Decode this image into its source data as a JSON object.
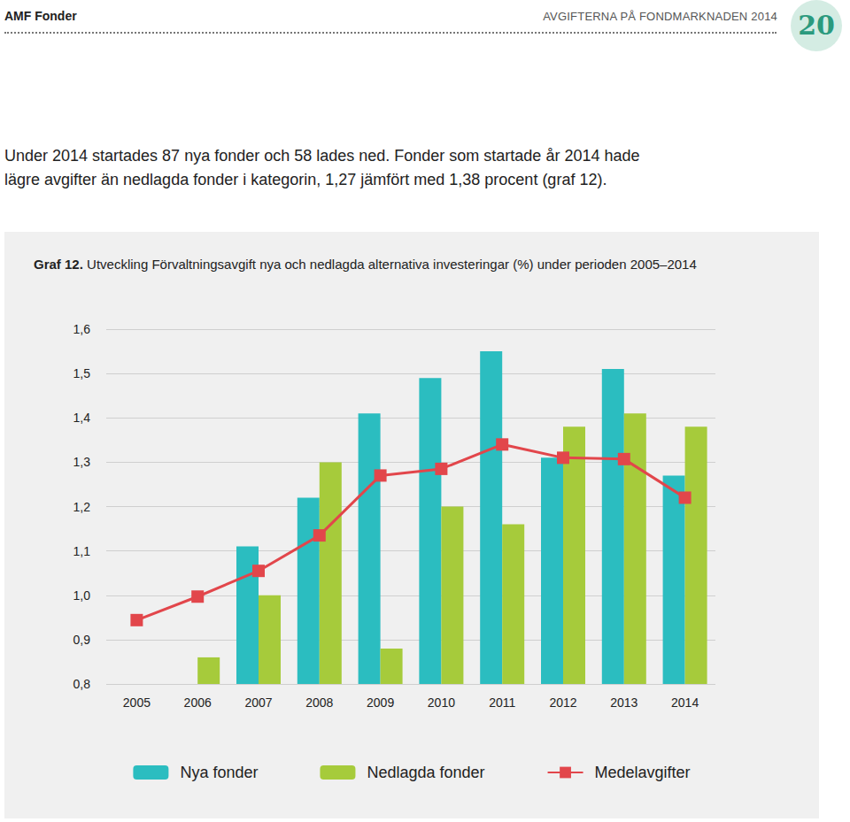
{
  "page": {
    "header_left": "AMF Fonder",
    "header_right": "AVGIFTERNA PÅ FONDMARKNADEN 2014",
    "page_number": "20",
    "paragraph": "Under 2014 startades 87 nya fonder och 58 lades ned. Fonder som startade år 2014 hade lägre avgifter än nedlagda fonder i kategorin, 1,27 jämfört med 1,38 procent (graf 12)."
  },
  "chart_data": {
    "type": "bar",
    "title_label": "Graf 12.",
    "title": "Utveckling Förvaltningsavgift nya och nedlagda alternativa investeringar (%) under perioden 2005–2014",
    "categories": [
      "2005",
      "2006",
      "2007",
      "2008",
      "2009",
      "2010",
      "2011",
      "2012",
      "2013",
      "2014"
    ],
    "series": [
      {
        "name": "Nya fonder",
        "type": "bar",
        "color": "#2bbdc0",
        "values": [
          null,
          null,
          1.11,
          1.22,
          1.41,
          1.49,
          1.55,
          1.31,
          1.51,
          1.27
        ]
      },
      {
        "name": "Nedlagda fonder",
        "type": "bar",
        "color": "#a6cb3b",
        "values": [
          null,
          0.86,
          1.0,
          1.3,
          0.88,
          1.2,
          1.16,
          1.38,
          1.41,
          1.38
        ]
      },
      {
        "name": "Medelavgifter",
        "type": "line",
        "color": "#e2464b",
        "marker": "square",
        "values": [
          0.944,
          0.997,
          1.055,
          1.135,
          1.27,
          1.285,
          1.34,
          1.31,
          1.307,
          1.22
        ]
      }
    ],
    "ylim": [
      0.8,
      1.6
    ],
    "yticks": [
      {
        "value": 0.8,
        "label": "0,8"
      },
      {
        "value": 0.9,
        "label": "0,9"
      },
      {
        "value": 1.0,
        "label": "1,0"
      },
      {
        "value": 1.1,
        "label": "1,1"
      },
      {
        "value": 1.2,
        "label": "1,2"
      },
      {
        "value": 1.3,
        "label": "1,3"
      },
      {
        "value": 1.4,
        "label": "1,4"
      },
      {
        "value": 1.5,
        "label": "1,5"
      },
      {
        "value": 1.6,
        "label": "1,6"
      }
    ],
    "grid": true,
    "legend": "bottom"
  }
}
